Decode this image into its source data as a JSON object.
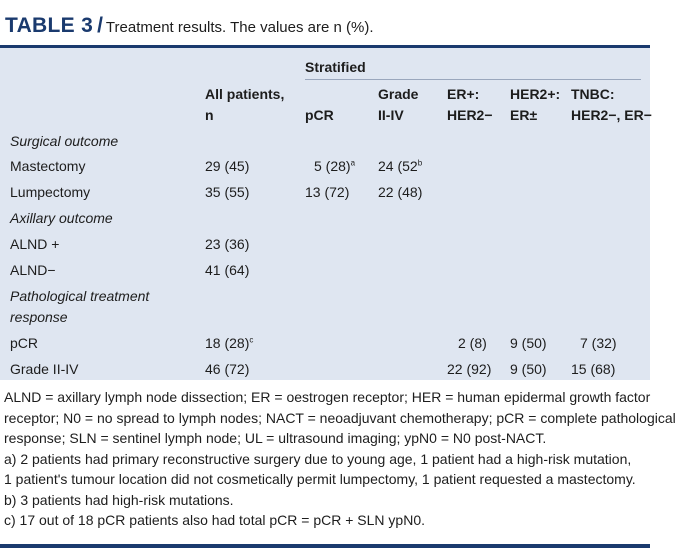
{
  "caption": {
    "label": "TABLE 3",
    "slash": "/",
    "text": "Treatment results. The values are n (%)."
  },
  "headers": {
    "stratified": "Stratified",
    "all_patients": [
      "All patients,",
      "n"
    ],
    "pcr": "pCR",
    "grade": [
      "Grade",
      "II-IV"
    ],
    "er": [
      "ER+:",
      "HER2−"
    ],
    "her2": [
      "HER2+:",
      "ER±"
    ],
    "tnbc": [
      "TNBC:",
      "HER2−, ER−"
    ]
  },
  "sections": {
    "surgical": "Surgical outcome",
    "axillary": "Axillary outcome",
    "pathological": [
      "Pathological treatment",
      "response"
    ]
  },
  "rows": {
    "mastectomy": {
      "label": "Mastectomy",
      "all": "29 (45)",
      "pcr": "5 (28)",
      "pcr_sup": "a",
      "grade": "24 (52",
      "grade_sup": "b"
    },
    "lumpectomy": {
      "label": "Lumpectomy",
      "all": "35 (55)",
      "pcr": "13 (72)",
      "grade": "22 (48)"
    },
    "alnd_pos": {
      "label": "ALND +",
      "all": "23 (36)"
    },
    "alnd_neg": {
      "label": "ALND−",
      "all": "41 (64)"
    },
    "pcr": {
      "label": "pCR",
      "all": "18 (28)",
      "all_sup": "c",
      "er": "2 (8)",
      "her2": "9 (50)",
      "tnbc": "7 (32)"
    },
    "grade_row": {
      "label": "Grade II-IV",
      "all": "46 (72)",
      "er": "22 (92)",
      "her2": "9 (50)",
      "tnbc": "15 (68)"
    }
  },
  "footnotes": [
    "ALND = axillary lymph node dissection; ER = oestrogen receptor; HER = human epidermal growth factor",
    "receptor; N0 = no spread to lymph nodes; NACT = neoadjuvant chemotherapy; pCR = complete pathological",
    "response; SLN = sentinel lymph node; UL = ultrasound imaging; ypN0 = N0 post-NACT.",
    "a) 2 patients had primary reconstructive surgery due to young age, 1 patient had a high-risk mutation,",
    "1 patient's tumour location did not cosmetically permit lumpectomy, 1 patient requested a mastectomy.",
    "b) 3 patients had high-risk mutations.",
    "c) 17 out of 18 pCR patients also had total pCR = pCR + SLN ypN0."
  ],
  "colors": {
    "accent": "#1a3a6e",
    "table_bg": "#dfe6f1"
  }
}
